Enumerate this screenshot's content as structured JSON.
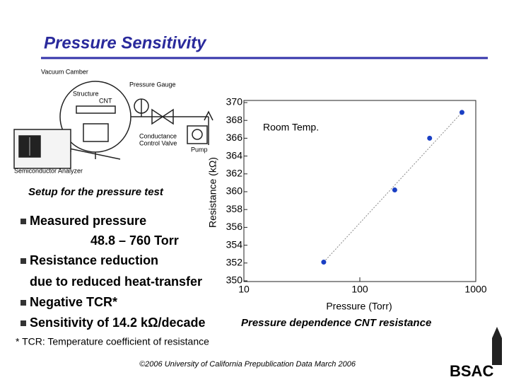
{
  "header": {
    "title": "Pressure Sensitivity"
  },
  "setup": {
    "caption": "Setup for the pressure test",
    "labels": [
      "Vacuum Camber",
      "Structure",
      "CNT",
      "Pressure Gauge",
      "Conductance",
      "Control Valve",
      "Pump",
      "Semiconductor Analyzer"
    ]
  },
  "bullets": [
    "Measured pressure",
    "48.8 – 760 Torr",
    "Resistance reduction",
    "due to reduced heat-transfer",
    "Negative TCR*",
    "Sensitivity of 14.2 kΩ/decade"
  ],
  "chart_caption": "Pressure dependence CNT resistance",
  "footnote": "* TCR: Temperature coefficient of resistance",
  "copyright": "©2006 University of California   Prepublication Data March 2006",
  "logo": "BSAC",
  "chart_data": {
    "type": "scatter",
    "annotation": "Room Temp.",
    "x_label": "Pressure (Torr)",
    "y_label": "Resistance (kΩ)",
    "x": [
      48.8,
      200,
      400,
      760
    ],
    "values": [
      352.1,
      360.2,
      366.0,
      368.9
    ],
    "color": "#1a3fc4",
    "xscale": "log",
    "xlim": [
      10,
      1000
    ],
    "xticks": [
      10,
      100,
      1000
    ],
    "ylim": [
      350,
      370
    ],
    "yticks": [
      350,
      352,
      354,
      356,
      358,
      360,
      362,
      364,
      366,
      368,
      370
    ]
  }
}
